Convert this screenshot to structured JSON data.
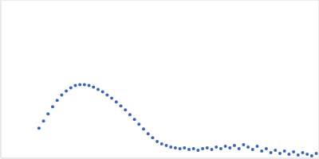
{
  "chart_data": {
    "type": "scatter",
    "color": "#3a66b5",
    "marker": "circle",
    "grid": true,
    "tick_labels": false,
    "xlim": [
      0,
      0.35
    ],
    "xticks": [
      0.1
    ],
    "ylim": [
      0,
      2
    ],
    "yticks": [
      1
    ],
    "x": [
      0.042,
      0.047,
      0.052,
      0.057,
      0.062,
      0.067,
      0.072,
      0.077,
      0.082,
      0.087,
      0.092,
      0.097,
      0.102,
      0.107,
      0.112,
      0.117,
      0.122,
      0.127,
      0.132,
      0.137,
      0.142,
      0.147,
      0.152,
      0.157,
      0.162,
      0.167,
      0.172,
      0.177,
      0.182,
      0.187,
      0.192,
      0.197,
      0.202,
      0.207,
      0.212,
      0.217,
      0.222,
      0.227,
      0.232,
      0.237,
      0.242,
      0.247,
      0.252,
      0.257,
      0.262,
      0.267,
      0.272,
      0.277,
      0.282,
      0.287,
      0.292,
      0.297,
      0.302,
      0.307,
      0.312,
      0.317,
      0.322,
      0.327,
      0.332,
      0.337,
      0.342,
      0.347
    ],
    "values": [
      0.38,
      0.47,
      0.56,
      0.65,
      0.73,
      0.8,
      0.85,
      0.89,
      0.92,
      0.93,
      0.93,
      0.92,
      0.9,
      0.87,
      0.84,
      0.8,
      0.76,
      0.71,
      0.66,
      0.61,
      0.55,
      0.49,
      0.43,
      0.37,
      0.31,
      0.26,
      0.21,
      0.18,
      0.16,
      0.14,
      0.13,
      0.12,
      0.13,
      0.11,
      0.12,
      0.1,
      0.12,
      0.13,
      0.11,
      0.14,
      0.12,
      0.15,
      0.13,
      0.16,
      0.12,
      0.17,
      0.14,
      0.11,
      0.15,
      0.09,
      0.12,
      0.07,
      0.1,
      0.06,
      0.09,
      0.05,
      0.08,
      0.04,
      0.07,
      0.05,
      0.03,
      0.06
    ]
  }
}
